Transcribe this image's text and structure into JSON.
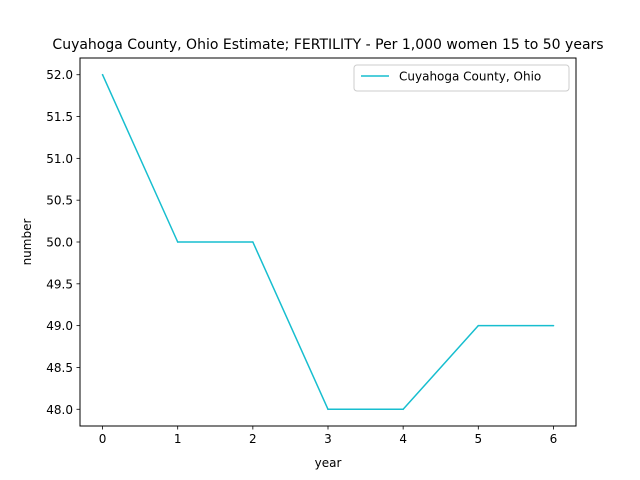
{
  "chart_data": {
    "type": "line",
    "title": "Cuyahoga County, Ohio Estimate; FERTILITY - Per 1,000 women 15 to 50 years",
    "xlabel": "year",
    "ylabel": "number",
    "x": [
      0,
      1,
      2,
      3,
      4,
      5,
      6
    ],
    "series": [
      {
        "name": "Cuyahoga County, Ohio",
        "values": [
          52.0,
          50.0,
          50.0,
          48.0,
          48.0,
          49.0,
          49.0
        ],
        "color": "#17becf"
      }
    ],
    "xlim": [
      -0.3,
      6.3
    ],
    "ylim": [
      47.8,
      52.2
    ],
    "xticks": [
      0,
      1,
      2,
      3,
      4,
      5,
      6
    ],
    "xtick_labels": [
      "0",
      "1",
      "2",
      "3",
      "4",
      "5",
      "6"
    ],
    "yticks": [
      48.0,
      48.5,
      49.0,
      49.5,
      50.0,
      50.5,
      51.0,
      51.5,
      52.0
    ],
    "ytick_labels": [
      "48.0",
      "48.5",
      "49.0",
      "49.5",
      "50.0",
      "50.5",
      "51.0",
      "51.5",
      "52.0"
    ],
    "grid": false,
    "legend_position": "upper right"
  }
}
